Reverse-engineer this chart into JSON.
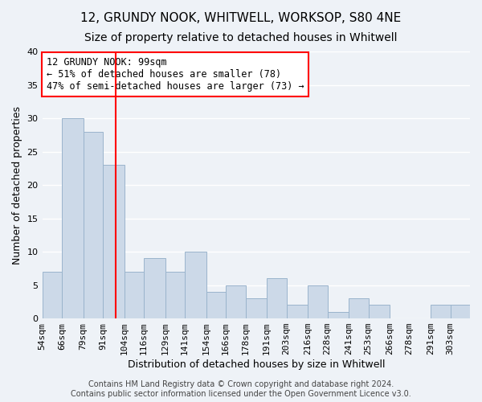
{
  "title": "12, GRUNDY NOOK, WHITWELL, WORKSOP, S80 4NE",
  "subtitle": "Size of property relative to detached houses in Whitwell",
  "xlabel": "Distribution of detached houses by size in Whitwell",
  "ylabel": "Number of detached properties",
  "bar_color": "#ccd9e8",
  "bar_edge_color": "#9ab4cc",
  "bin_labels": [
    "54sqm",
    "66sqm",
    "79sqm",
    "91sqm",
    "104sqm",
    "116sqm",
    "129sqm",
    "141sqm",
    "154sqm",
    "166sqm",
    "178sqm",
    "191sqm",
    "203sqm",
    "216sqm",
    "228sqm",
    "241sqm",
    "253sqm",
    "266sqm",
    "278sqm",
    "291sqm",
    "303sqm"
  ],
  "bin_edges": [
    54,
    66,
    79,
    91,
    104,
    116,
    129,
    141,
    154,
    166,
    178,
    191,
    203,
    216,
    228,
    241,
    253,
    266,
    278,
    291,
    303,
    315
  ],
  "values": [
    7,
    30,
    28,
    23,
    7,
    9,
    7,
    10,
    4,
    5,
    3,
    6,
    2,
    5,
    1,
    3,
    2,
    0,
    0,
    2,
    2
  ],
  "property_size": 99,
  "red_line_x": 99,
  "annotation_title": "12 GRUNDY NOOK: 99sqm",
  "annotation_line1": "← 51% of detached houses are smaller (78)",
  "annotation_line2": "47% of semi-detached houses are larger (73) →",
  "annotation_box_color": "white",
  "annotation_box_edge_color": "red",
  "red_line_color": "red",
  "ylim": [
    0,
    40
  ],
  "yticks": [
    0,
    5,
    10,
    15,
    20,
    25,
    30,
    35,
    40
  ],
  "footer1": "Contains HM Land Registry data © Crown copyright and database right 2024.",
  "footer2": "Contains public sector information licensed under the Open Government Licence v3.0.",
  "background_color": "#eef2f7",
  "grid_color": "white",
  "title_fontsize": 11,
  "subtitle_fontsize": 10,
  "axis_label_fontsize": 9,
  "tick_fontsize": 8,
  "annotation_fontsize": 8.5,
  "footer_fontsize": 7
}
